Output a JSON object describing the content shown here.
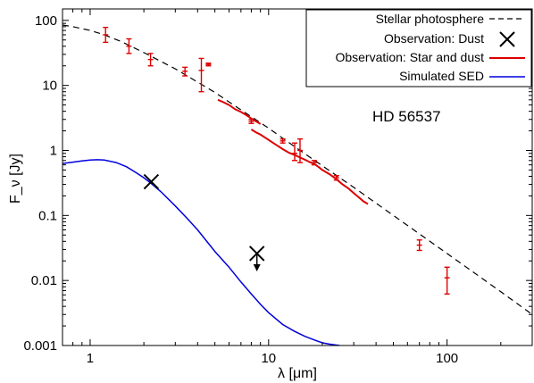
{
  "chart_data": {
    "type": "line",
    "title": "",
    "xlabel": "λ [μm]",
    "ylabel": "F_ν [Jy]",
    "xscale": "log",
    "yscale": "log",
    "xlim": [
      0.7,
      300
    ],
    "ylim": [
      0.001,
      150
    ],
    "x_tick_labels": [
      "1",
      "10",
      "100"
    ],
    "y_tick_labels": [
      "0.001",
      "0.01",
      "0.1",
      "1",
      "10",
      "100"
    ],
    "grid": false,
    "legend_position": "top-right",
    "annotation": "HD 56537",
    "colors": {
      "photosphere": "#000000",
      "dust": "#000000",
      "star_dust": "#dd0000",
      "sed": "#0000dd"
    },
    "series": [
      {
        "name": "Stellar photosphere",
        "style": "dashed",
        "x": [
          0.7,
          0.8,
          1.0,
          1.2,
          1.5,
          2.0,
          3.0,
          5.0,
          7.0,
          10.0,
          15.0,
          20.0,
          30.0,
          50.0,
          70.0,
          100.0,
          150.0,
          200.0,
          300.0
        ],
        "y": [
          85,
          80,
          70,
          60,
          47,
          32,
          18,
          7.8,
          4.2,
          2.2,
          1.0,
          0.58,
          0.27,
          0.1,
          0.052,
          0.026,
          0.0118,
          0.0067,
          0.003
        ]
      },
      {
        "name": "Observation: Dust",
        "style": "x-marker",
        "points": [
          {
            "x": 2.2,
            "y": 0.33,
            "upper_limit": false
          },
          {
            "x": 8.6,
            "y": 0.026,
            "upper_limit": true
          }
        ]
      },
      {
        "name": "Observation: Star and dust",
        "style": "errorbars-and-spectra",
        "points": [
          {
            "x": 1.22,
            "y": 60,
            "ylo": 46,
            "yhi": 78
          },
          {
            "x": 1.65,
            "y": 40,
            "ylo": 31,
            "yhi": 52
          },
          {
            "x": 2.18,
            "y": 25,
            "ylo": 20,
            "yhi": 31
          },
          {
            "x": 3.4,
            "y": 16.5,
            "ylo": 14,
            "yhi": 19
          },
          {
            "x": 4.2,
            "y": 17,
            "ylo": 8,
            "yhi": 26
          },
          {
            "x": 4.6,
            "y": 21,
            "ylo": 20,
            "yhi": 22
          },
          {
            "x": 8.0,
            "y": 2.8,
            "ylo": 2.6,
            "yhi": 3.0
          },
          {
            "x": 12.0,
            "y": 1.4,
            "ylo": 1.3,
            "yhi": 1.5
          },
          {
            "x": 14.0,
            "y": 0.9,
            "ylo": 0.7,
            "yhi": 1.3
          },
          {
            "x": 15.0,
            "y": 1.0,
            "ylo": 0.65,
            "yhi": 1.5
          },
          {
            "x": 18.0,
            "y": 0.65,
            "ylo": 0.6,
            "yhi": 0.7
          },
          {
            "x": 24.0,
            "y": 0.38,
            "ylo": 0.35,
            "yhi": 0.41
          },
          {
            "x": 70.0,
            "y": 0.035,
            "ylo": 0.029,
            "yhi": 0.042
          },
          {
            "x": 100.0,
            "y": 0.011,
            "ylo": 0.0062,
            "yhi": 0.016
          }
        ],
        "spectra": [
          {
            "x": [
              5.2,
              5.6,
              6.0,
              6.5,
              7.0,
              7.5,
              8.0,
              8.5,
              9.0
            ],
            "y": [
              6.0,
              5.5,
              5.0,
              4.3,
              3.9,
              3.5,
              3.1,
              2.8,
              2.55
            ]
          },
          {
            "x": [
              8.0,
              8.5,
              9.0,
              10.0,
              11.0,
              12.0,
              13.0,
              14.0,
              15.0,
              16.0,
              17.0,
              18.0,
              19.0,
              20.0,
              22.0,
              24.0,
              26.0,
              28.0,
              30.0,
              32.0,
              34.0,
              36.0
            ],
            "y": [
              2.1,
              1.9,
              1.75,
              1.45,
              1.22,
              1.05,
              0.92,
              0.85,
              0.78,
              0.72,
              0.66,
              0.62,
              0.56,
              0.5,
              0.43,
              0.36,
              0.3,
              0.26,
              0.22,
              0.19,
              0.165,
              0.15
            ]
          }
        ]
      },
      {
        "name": "Simulated SED",
        "style": "solid",
        "x": [
          0.7,
          0.8,
          0.9,
          1.0,
          1.1,
          1.2,
          1.4,
          1.6,
          1.8,
          2.0,
          2.2,
          2.5,
          3.0,
          3.5,
          4.0,
          5.0,
          6.0,
          7.0,
          8.0,
          9.0,
          10.0,
          12.0,
          14.0,
          16.0,
          18.0,
          20.0,
          22.0,
          25.0
        ],
        "y": [
          0.63,
          0.66,
          0.69,
          0.71,
          0.72,
          0.71,
          0.65,
          0.56,
          0.46,
          0.38,
          0.31,
          0.23,
          0.14,
          0.09,
          0.06,
          0.028,
          0.016,
          0.0095,
          0.0062,
          0.0043,
          0.0032,
          0.0021,
          0.00165,
          0.00138,
          0.00122,
          0.0011,
          0.00105,
          0.001
        ]
      }
    ]
  }
}
